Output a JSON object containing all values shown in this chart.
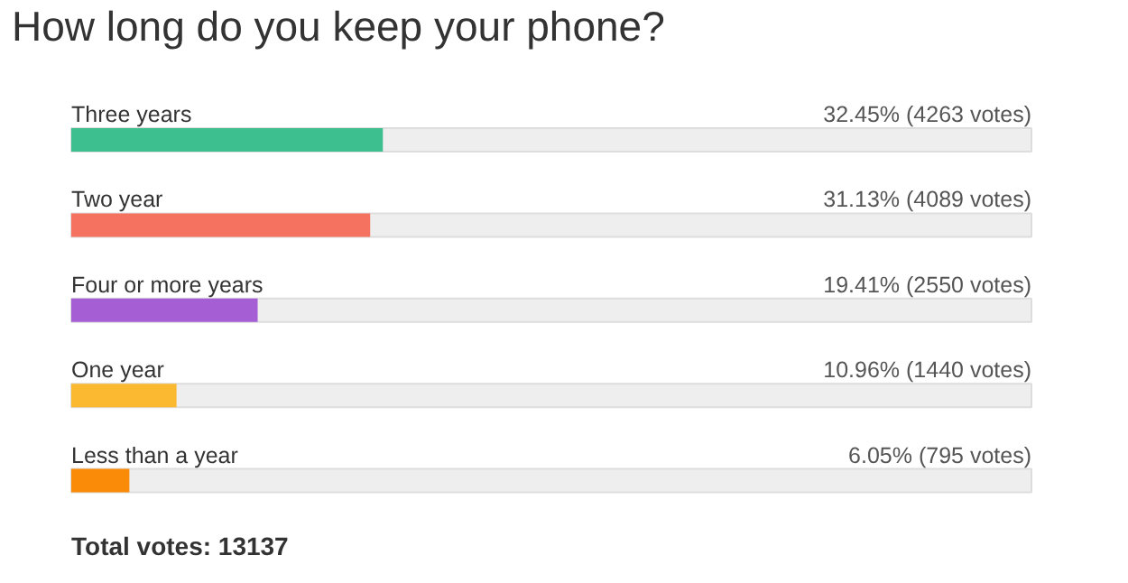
{
  "chart_data": {
    "type": "bar",
    "orientation": "horizontal",
    "title": "How long do you keep your phone?",
    "categories": [
      "Three years",
      "Two year",
      "Four or more years",
      "One year",
      "Less than a year"
    ],
    "values": [
      32.45,
      31.13,
      19.41,
      10.96,
      6.05
    ],
    "colors": [
      "#3dbf8f",
      "#f4725f",
      "#a55ed4",
      "#fbb932",
      "#f98b09"
    ],
    "value_labels": [
      "32.45% (4263 votes)",
      "31.13% (4089 votes)",
      "19.41% (2550 votes)",
      "10.96% (1440 votes)",
      "6.05% (795 votes)"
    ],
    "xlim": [
      0,
      100
    ],
    "tick_labels": false,
    "grid": false,
    "annotations": [
      "Total votes: 13137"
    ]
  }
}
